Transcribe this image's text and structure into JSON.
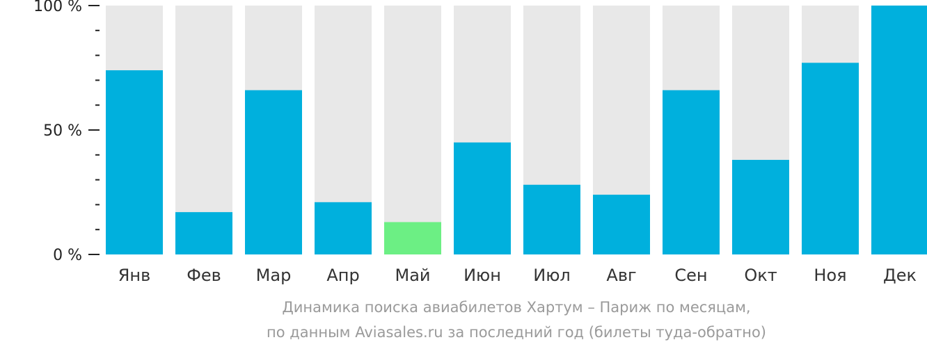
{
  "chart_data": {
    "type": "bar",
    "categories": [
      "Янв",
      "Фев",
      "Мар",
      "Апр",
      "Май",
      "Июн",
      "Июл",
      "Авг",
      "Сен",
      "Окт",
      "Ноя",
      "Дек"
    ],
    "values": [
      74,
      17,
      66,
      21,
      13,
      45,
      28,
      24,
      66,
      38,
      77,
      100
    ],
    "highlight_index": 4,
    "y_ticks": [
      {
        "value": 100,
        "label": "100 %"
      },
      {
        "value": 50,
        "label": "50 %"
      },
      {
        "value": 0,
        "label": "0 %"
      }
    ],
    "ylim": [
      0,
      100
    ],
    "minor_tick_step": 10,
    "colors": {
      "bar": "#00b0dd",
      "highlight": "#6cef84",
      "track": "#e8e8e8",
      "axis": "#222222"
    }
  },
  "caption": {
    "line1": "Динамика поиска авиабилетов Хартум – Париж по месяцам,",
    "line2": "по данным Aviasales.ru за последний год (билеты туда-обратно)"
  }
}
